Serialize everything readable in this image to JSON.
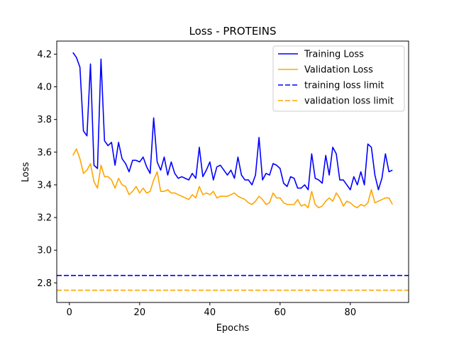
{
  "chart_data": {
    "type": "line",
    "title": "Loss - PROTEINS",
    "xlabel": "Epochs",
    "ylabel": "Loss",
    "xlim": [
      -3.6,
      96.6
    ],
    "ylim": [
      2.68,
      4.28
    ],
    "xticks": [
      0,
      20,
      40,
      60,
      80
    ],
    "xtick_labels": [
      "0",
      "20",
      "40",
      "60",
      "80"
    ],
    "yticks": [
      2.8,
      3.0,
      3.2,
      3.4,
      3.6,
      3.8,
      4.0,
      4.2
    ],
    "ytick_labels": [
      "2.8",
      "3.0",
      "3.2",
      "3.4",
      "3.6",
      "3.8",
      "4.0",
      "4.2"
    ],
    "grid": false,
    "legend_position": "top-right",
    "x": [
      1,
      2,
      3,
      4,
      5,
      6,
      7,
      8,
      9,
      10,
      11,
      12,
      13,
      14,
      15,
      16,
      17,
      18,
      19,
      20,
      21,
      22,
      23,
      24,
      25,
      26,
      27,
      28,
      29,
      30,
      31,
      32,
      33,
      34,
      35,
      36,
      37,
      38,
      39,
      40,
      41,
      42,
      43,
      44,
      45,
      46,
      47,
      48,
      49,
      50,
      51,
      52,
      53,
      54,
      55,
      56,
      57,
      58,
      59,
      60,
      61,
      62,
      63,
      64,
      65,
      66,
      67,
      68,
      69,
      70,
      71,
      72,
      73,
      74,
      75,
      76,
      77,
      78,
      79,
      80,
      81,
      82,
      83,
      84,
      85,
      86,
      87,
      88,
      89,
      90,
      91,
      92
    ],
    "series": [
      {
        "name": "Training Loss",
        "color": "#0000ff",
        "style": "solid",
        "values": [
          4.21,
          4.18,
          4.12,
          3.73,
          3.7,
          4.14,
          3.52,
          3.5,
          4.17,
          3.67,
          3.64,
          3.66,
          3.52,
          3.66,
          3.56,
          3.53,
          3.48,
          3.55,
          3.55,
          3.54,
          3.57,
          3.51,
          3.47,
          3.81,
          3.54,
          3.49,
          3.57,
          3.46,
          3.54,
          3.47,
          3.44,
          3.45,
          3.44,
          3.43,
          3.47,
          3.44,
          3.63,
          3.45,
          3.49,
          3.54,
          3.43,
          3.51,
          3.52,
          3.49,
          3.46,
          3.49,
          3.44,
          3.57,
          3.46,
          3.43,
          3.43,
          3.4,
          3.46,
          3.69,
          3.43,
          3.47,
          3.46,
          3.53,
          3.52,
          3.5,
          3.41,
          3.39,
          3.45,
          3.44,
          3.38,
          3.38,
          3.4,
          3.37,
          3.59,
          3.44,
          3.43,
          3.41,
          3.58,
          3.46,
          3.63,
          3.59,
          3.43,
          3.43,
          3.4,
          3.37,
          3.45,
          3.4,
          3.48,
          3.4,
          3.65,
          3.63,
          3.46,
          3.37,
          3.44,
          3.59,
          3.48,
          3.49
        ]
      },
      {
        "name": "Validation Loss",
        "color": "#ffa500",
        "style": "solid",
        "values": [
          3.58,
          3.62,
          3.56,
          3.47,
          3.49,
          3.53,
          3.42,
          3.38,
          3.52,
          3.45,
          3.45,
          3.43,
          3.38,
          3.44,
          3.4,
          3.39,
          3.34,
          3.36,
          3.39,
          3.35,
          3.38,
          3.35,
          3.36,
          3.43,
          3.48,
          3.36,
          3.36,
          3.37,
          3.35,
          3.35,
          3.34,
          3.33,
          3.32,
          3.31,
          3.34,
          3.32,
          3.39,
          3.34,
          3.35,
          3.34,
          3.36,
          3.32,
          3.33,
          3.33,
          3.33,
          3.34,
          3.35,
          3.33,
          3.32,
          3.31,
          3.29,
          3.28,
          3.3,
          3.33,
          3.31,
          3.28,
          3.29,
          3.35,
          3.32,
          3.32,
          3.29,
          3.28,
          3.28,
          3.28,
          3.31,
          3.27,
          3.28,
          3.26,
          3.36,
          3.28,
          3.26,
          3.27,
          3.3,
          3.32,
          3.3,
          3.35,
          3.32,
          3.27,
          3.3,
          3.29,
          3.27,
          3.26,
          3.28,
          3.27,
          3.29,
          3.37,
          3.29,
          3.3,
          3.31,
          3.32,
          3.32,
          3.28
        ]
      },
      {
        "name": "training loss limit",
        "color": "#0000ff",
        "style": "dashed",
        "constant": 2.845
      },
      {
        "name": "validation loss limit",
        "color": "#ffa500",
        "style": "dashed",
        "constant": 2.755
      }
    ]
  }
}
